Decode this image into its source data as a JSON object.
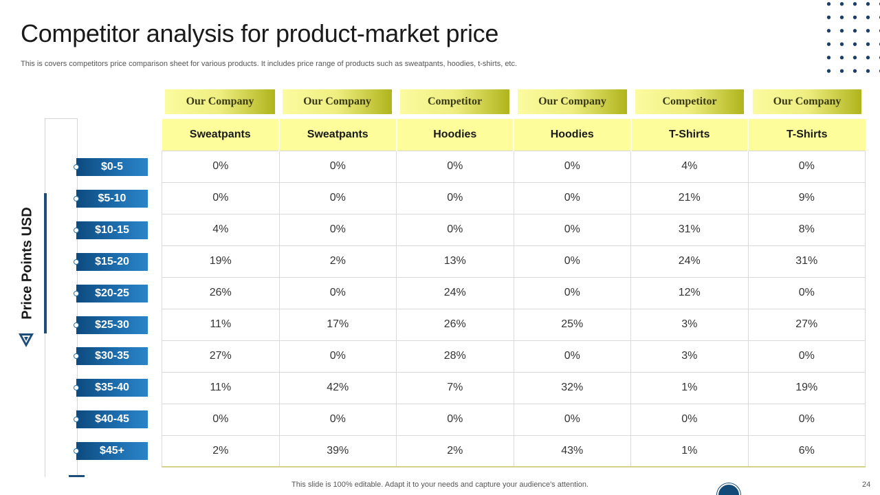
{
  "title": "Competitor analysis for product-market price",
  "subtitle": "This is covers competitors price comparison sheet for various products. It includes price range of products such as sweatpants, hoodies, t-shirts, etc.",
  "side_label": "Price Points USD",
  "column_heads": [
    "Our Company",
    "Our Company",
    "Competitor",
    "Our Company",
    "Competitor",
    "Our Company"
  ],
  "products": [
    "Sweatpants",
    "Sweatpants",
    "Hoodies",
    "Hoodies",
    "T-Shirts",
    "T-Shirts"
  ],
  "price_points": [
    "$0-5",
    "$5-10",
    "$10-15",
    "$15-20",
    "$20-25",
    "$25-30",
    "$30-35",
    "$35-40",
    "$40-45",
    "$45+"
  ],
  "rows": [
    [
      "0%",
      "0%",
      "0%",
      "0%",
      "4%",
      "0%"
    ],
    [
      "0%",
      "0%",
      "0%",
      "0%",
      "21%",
      "9%"
    ],
    [
      "4%",
      "0%",
      "0%",
      "0%",
      "31%",
      "8%"
    ],
    [
      "19%",
      "2%",
      "13%",
      "0%",
      "24%",
      "31%"
    ],
    [
      "26%",
      "0%",
      "24%",
      "0%",
      "12%",
      "0%"
    ],
    [
      "11%",
      "17%",
      "26%",
      "25%",
      "3%",
      "27%"
    ],
    [
      "27%",
      "0%",
      "28%",
      "0%",
      "3%",
      "0%"
    ],
    [
      "11%",
      "42%",
      "7%",
      "32%",
      "1%",
      "19%"
    ],
    [
      "0%",
      "0%",
      "0%",
      "0%",
      "0%",
      "0%"
    ],
    [
      "2%",
      "39%",
      "2%",
      "43%",
      "1%",
      "6%"
    ]
  ],
  "footer": "This slide is 100% editable. Adapt it to your needs and capture your audience's attention.",
  "page_number": "24",
  "colors": {
    "accent_blue": "#1d4e7a",
    "header_yellow": "#fdfd9c",
    "olive": "#b0b41c"
  }
}
